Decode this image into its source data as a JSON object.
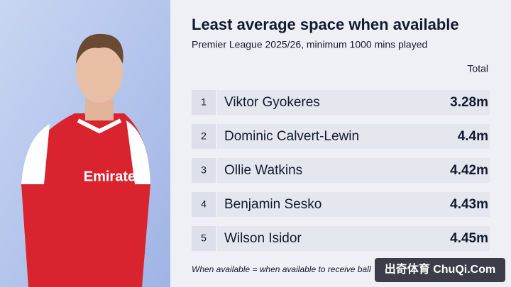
{
  "header": {
    "title": "Least average space when available",
    "subtitle": "Premier League 2025/26, minimum 1000 mins played"
  },
  "table": {
    "column_header": "Total",
    "rows": [
      [
        "1",
        "Viktor Gyokeres",
        "3.28m"
      ],
      [
        "2",
        "Dominic Calvert-Lewin",
        "4.4m"
      ],
      [
        "3",
        "Ollie Watkins",
        "4.42m"
      ],
      [
        "4",
        "Benjamin Sesko",
        "4.43m"
      ],
      [
        "5",
        "Wilson Isidor",
        "4.45m"
      ]
    ]
  },
  "footnote": "When available = when available to receive ball",
  "watermark": "出奇体育 ChuQi.Com"
}
